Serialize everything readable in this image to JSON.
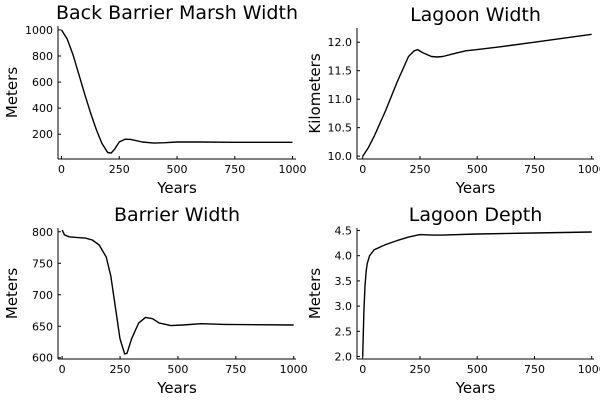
{
  "chart_data": [
    {
      "type": "line",
      "title": "Back Barrier Marsh Width",
      "xlabel": "Years",
      "ylabel": "Meters",
      "xlim": [
        -15,
        1015
      ],
      "ylim": [
        10,
        1030
      ],
      "xticks": [
        0,
        250,
        500,
        750,
        1000
      ],
      "yticks": [
        200,
        400,
        600,
        800,
        1000
      ],
      "grid": false,
      "series": [
        {
          "x": [
            0,
            25,
            50,
            75,
            100,
            125,
            150,
            175,
            200,
            215,
            230,
            250,
            275,
            300,
            350,
            400,
            450,
            500,
            600,
            750,
            1000
          ],
          "y": [
            1000,
            930,
            810,
            660,
            510,
            370,
            240,
            130,
            60,
            55,
            85,
            140,
            162,
            160,
            140,
            132,
            135,
            140,
            140,
            138,
            138
          ]
        }
      ]
    },
    {
      "type": "line",
      "title": "Lagoon Width",
      "xlabel": "Years",
      "ylabel": "Kilometers",
      "xlim": [
        -25,
        1010
      ],
      "ylim": [
        9.95,
        12.25
      ],
      "xticks": [
        0,
        250,
        500,
        750,
        1000
      ],
      "yticks": [
        10.0,
        10.5,
        11.0,
        11.5,
        12.0
      ],
      "grid": false,
      "series": [
        {
          "x": [
            0,
            25,
            50,
            100,
            150,
            200,
            225,
            240,
            260,
            300,
            325,
            350,
            400,
            450,
            500,
            600,
            750,
            1000
          ],
          "y": [
            10.0,
            10.15,
            10.35,
            10.8,
            11.3,
            11.75,
            11.85,
            11.87,
            11.82,
            11.75,
            11.74,
            11.75,
            11.8,
            11.85,
            11.87,
            11.92,
            12.0,
            12.14
          ]
        }
      ]
    },
    {
      "type": "line",
      "title": "Barrier Width",
      "xlabel": "Years",
      "ylabel": "Meters",
      "xlim": [
        -18,
        1010
      ],
      "ylim": [
        598,
        806
      ],
      "xticks": [
        0,
        250,
        500,
        750,
        1000
      ],
      "yticks": [
        600,
        650,
        700,
        750,
        800
      ],
      "grid": false,
      "series": [
        {
          "x": [
            0,
            10,
            30,
            60,
            100,
            130,
            160,
            190,
            210,
            230,
            250,
            270,
            280,
            300,
            330,
            360,
            390,
            420,
            470,
            520,
            600,
            700,
            1000
          ],
          "y": [
            803,
            795,
            792,
            791,
            790,
            787,
            779,
            760,
            730,
            680,
            630,
            606,
            607,
            630,
            655,
            664,
            662,
            655,
            651,
            652,
            654,
            653,
            652
          ]
        }
      ]
    },
    {
      "type": "line",
      "title": "Lagoon Depth",
      "xlabel": "Years",
      "ylabel": "Meters",
      "xlim": [
        -25,
        1010
      ],
      "ylim": [
        1.95,
        4.55
      ],
      "xticks": [
        0,
        250,
        500,
        750,
        1000
      ],
      "yticks": [
        2.0,
        2.5,
        3.0,
        3.5,
        4.0,
        4.5
      ],
      "grid": false,
      "series": [
        {
          "x": [
            0,
            5,
            10,
            15,
            20,
            30,
            50,
            75,
            100,
            150,
            200,
            250,
            300,
            350,
            500,
            750,
            1000
          ],
          "y": [
            2.0,
            2.9,
            3.4,
            3.7,
            3.85,
            4.0,
            4.12,
            4.17,
            4.22,
            4.3,
            4.37,
            4.42,
            4.41,
            4.41,
            4.43,
            4.45,
            4.47
          ]
        }
      ]
    }
  ]
}
